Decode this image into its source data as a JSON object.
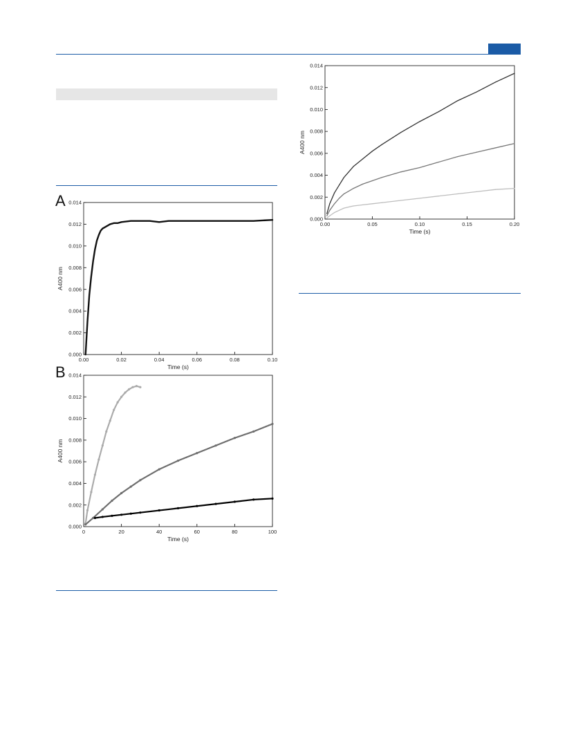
{
  "page": {
    "panel_labels": [
      "A",
      "B"
    ]
  },
  "chart_data": [
    {
      "id": "chartA",
      "type": "line",
      "xlabel": "Time (s)",
      "ylabel": "A400 nm",
      "xlim": [
        0,
        0.1
      ],
      "ylim": [
        0,
        0.014
      ],
      "xticks": [
        0.0,
        0.02,
        0.04,
        0.06,
        0.08,
        0.1
      ],
      "xtick_labels": [
        "0.00",
        "0.02",
        "0.04",
        "0.06",
        "0.08",
        "0.10"
      ],
      "yticks": [
        0.0,
        0.002,
        0.004,
        0.006,
        0.008,
        0.01,
        0.012,
        0.014
      ],
      "ytick_labels": [
        "0.000",
        "0.002",
        "0.004",
        "0.006",
        "0.008",
        "0.010",
        "0.012",
        "0.014"
      ],
      "grid": false,
      "series": [
        {
          "color": "#111111",
          "x": [
            0.001,
            0.002,
            0.003,
            0.004,
            0.005,
            0.006,
            0.007,
            0.008,
            0.009,
            0.01,
            0.012,
            0.014,
            0.016,
            0.018,
            0.02,
            0.025,
            0.03,
            0.035,
            0.04,
            0.045,
            0.05,
            0.06,
            0.07,
            0.08,
            0.09,
            0.1
          ],
          "y": [
            0.0,
            0.003,
            0.0055,
            0.0072,
            0.0086,
            0.0097,
            0.0105,
            0.011,
            0.0114,
            0.0116,
            0.0118,
            0.012,
            0.0121,
            0.0121,
            0.0122,
            0.0123,
            0.0123,
            0.0123,
            0.0122,
            0.0123,
            0.0123,
            0.0123,
            0.0123,
            0.0123,
            0.0123,
            0.0124
          ]
        }
      ]
    },
    {
      "id": "chartB",
      "type": "scatter",
      "xlabel": "Time (s)",
      "ylabel": "A400 nm",
      "xlim": [
        0,
        100
      ],
      "ylim": [
        0,
        0.014
      ],
      "xticks": [
        0,
        20,
        40,
        60,
        80,
        100
      ],
      "xtick_labels": [
        "0",
        "20",
        "40",
        "60",
        "80",
        "100"
      ],
      "yticks": [
        0.0,
        0.002,
        0.004,
        0.006,
        0.008,
        0.01,
        0.012,
        0.014
      ],
      "ytick_labels": [
        "0.000",
        "0.002",
        "0.004",
        "0.006",
        "0.008",
        "0.010",
        "0.012",
        "0.014"
      ],
      "grid": false,
      "series": [
        {
          "color": "#aaaaaa",
          "x": [
            1,
            2,
            4,
            6,
            8,
            10,
            12,
            14,
            16,
            18,
            20,
            22,
            24,
            26,
            28,
            30
          ],
          "y": [
            0.0003,
            0.0015,
            0.0032,
            0.0048,
            0.0062,
            0.0075,
            0.0088,
            0.0098,
            0.0108,
            0.0115,
            0.012,
            0.0124,
            0.0127,
            0.0129,
            0.013,
            0.0129
          ]
        },
        {
          "color": "#6e6e6e",
          "x": [
            1,
            5,
            10,
            15,
            20,
            25,
            30,
            40,
            50,
            60,
            70,
            80,
            90,
            100
          ],
          "y": [
            0.0002,
            0.0008,
            0.0016,
            0.0024,
            0.0031,
            0.0037,
            0.0043,
            0.0053,
            0.0061,
            0.0068,
            0.0075,
            0.0082,
            0.0088,
            0.0095
          ]
        },
        {
          "color": "#000000",
          "x": [
            6,
            10,
            15,
            20,
            25,
            30,
            40,
            50,
            60,
            70,
            80,
            90,
            100
          ],
          "y": [
            0.0008,
            0.0009,
            0.001,
            0.0011,
            0.0012,
            0.0013,
            0.0015,
            0.0017,
            0.0019,
            0.0021,
            0.0023,
            0.0025,
            0.0026
          ]
        }
      ]
    },
    {
      "id": "chartC",
      "type": "line",
      "xlabel": "Time (s)",
      "ylabel": "A400 nm",
      "xlim": [
        0,
        0.2
      ],
      "ylim": [
        0,
        0.014
      ],
      "xticks": [
        0.0,
        0.05,
        0.1,
        0.15,
        0.2
      ],
      "xtick_labels": [
        "0.00",
        "0.05",
        "0.10",
        "0.15",
        "0.20"
      ],
      "yticks": [
        0.0,
        0.002,
        0.004,
        0.006,
        0.008,
        0.01,
        0.012,
        0.014
      ],
      "ytick_labels": [
        "0.000",
        "0.002",
        "0.004",
        "0.006",
        "0.008",
        "0.010",
        "0.012",
        "0.014"
      ],
      "grid": false,
      "series": [
        {
          "color": "#333333",
          "x": [
            0.002,
            0.005,
            0.01,
            0.015,
            0.02,
            0.03,
            0.04,
            0.05,
            0.06,
            0.08,
            0.1,
            0.12,
            0.14,
            0.16,
            0.18,
            0.2
          ],
          "y": [
            0.0005,
            0.0014,
            0.0024,
            0.0031,
            0.0038,
            0.0048,
            0.0055,
            0.0062,
            0.0068,
            0.0079,
            0.0089,
            0.0098,
            0.0108,
            0.0116,
            0.0125,
            0.0133
          ]
        },
        {
          "color": "#777777",
          "x": [
            0.002,
            0.005,
            0.01,
            0.015,
            0.02,
            0.03,
            0.04,
            0.05,
            0.06,
            0.08,
            0.1,
            0.12,
            0.14,
            0.16,
            0.18,
            0.2
          ],
          "y": [
            0.0003,
            0.0008,
            0.0014,
            0.0019,
            0.0023,
            0.0028,
            0.0032,
            0.0035,
            0.0038,
            0.0043,
            0.0047,
            0.0052,
            0.0057,
            0.0061,
            0.0065,
            0.0069
          ]
        },
        {
          "color": "#bdbdbd",
          "x": [
            0.002,
            0.005,
            0.01,
            0.015,
            0.02,
            0.03,
            0.04,
            0.05,
            0.06,
            0.08,
            0.1,
            0.12,
            0.14,
            0.16,
            0.18,
            0.2
          ],
          "y": [
            0.0001,
            0.0003,
            0.0006,
            0.0008,
            0.001,
            0.0012,
            0.0013,
            0.0014,
            0.0015,
            0.0017,
            0.0019,
            0.0021,
            0.0023,
            0.0025,
            0.0027,
            0.0028
          ]
        }
      ]
    }
  ]
}
